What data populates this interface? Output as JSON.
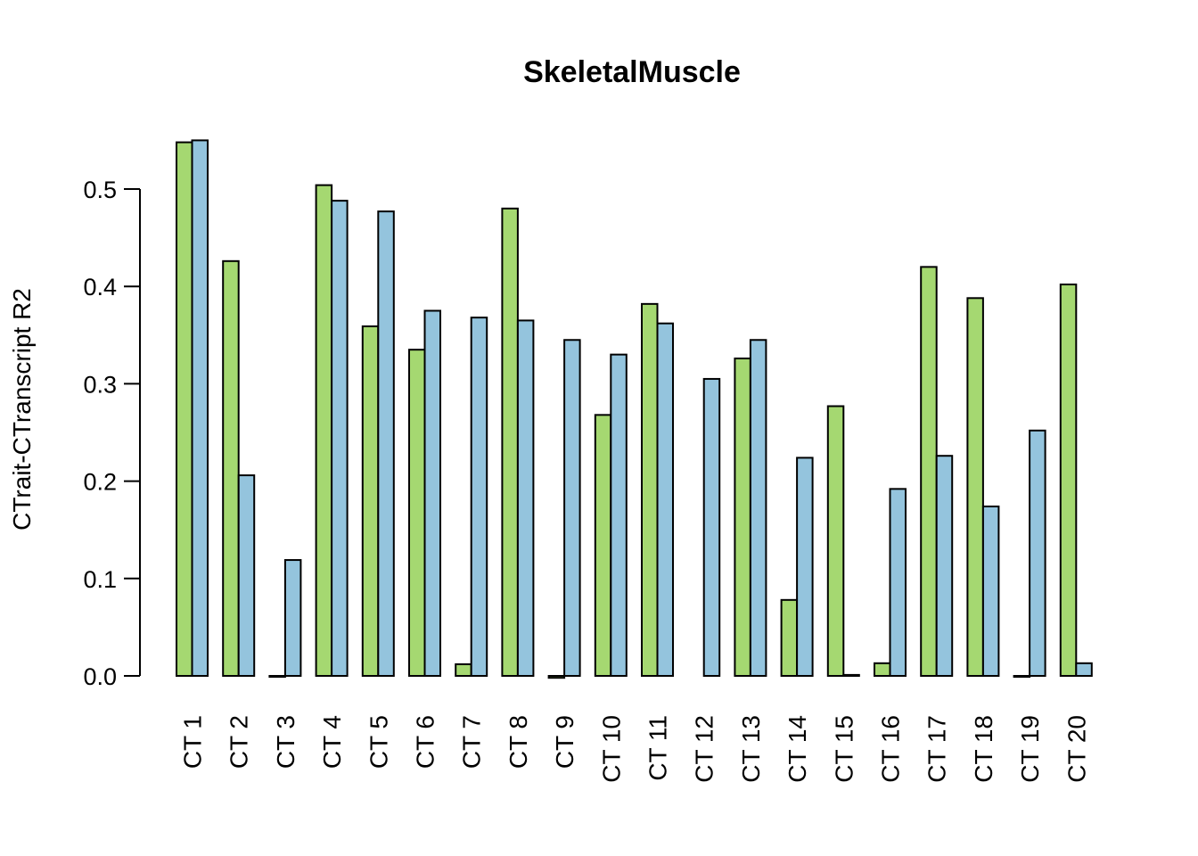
{
  "chart_data": {
    "type": "bar",
    "title": "SkeletalMuscle",
    "xlabel": "",
    "ylabel": "CTrait-CTranscript R2",
    "ylim": [
      0.0,
      0.55
    ],
    "yticks": [
      "0.0",
      "0.1",
      "0.2",
      "0.3",
      "0.4",
      "0.5"
    ],
    "ytick_values": [
      0.0,
      0.1,
      0.2,
      0.3,
      0.4,
      0.5
    ],
    "categories": [
      "CT 1",
      "CT 2",
      "CT 3",
      "CT 4",
      "CT 5",
      "CT 6",
      "CT 7",
      "CT 8",
      "CT 9",
      "CT 10",
      "CT 11",
      "CT 12",
      "CT 13",
      "CT 14",
      "CT 15",
      "CT 16",
      "CT 17",
      "CT 18",
      "CT 19",
      "CT 20"
    ],
    "series": [
      {
        "name": "series-1",
        "color": "#a5d871",
        "values": [
          0.548,
          0.426,
          -0.001,
          0.504,
          0.359,
          0.335,
          0.012,
          0.48,
          -0.002,
          0.268,
          0.382,
          0.0,
          0.326,
          0.078,
          0.277,
          0.013,
          0.42,
          0.388,
          -0.001,
          0.402
        ]
      },
      {
        "name": "series-2",
        "color": "#94c4dd",
        "values": [
          0.55,
          0.206,
          0.119,
          0.488,
          0.477,
          0.375,
          0.368,
          0.365,
          0.345,
          0.33,
          0.362,
          0.305,
          0.345,
          0.224,
          0.001,
          0.192,
          0.226,
          0.174,
          0.252,
          0.013
        ]
      }
    ],
    "legend": "none",
    "grid": false
  }
}
